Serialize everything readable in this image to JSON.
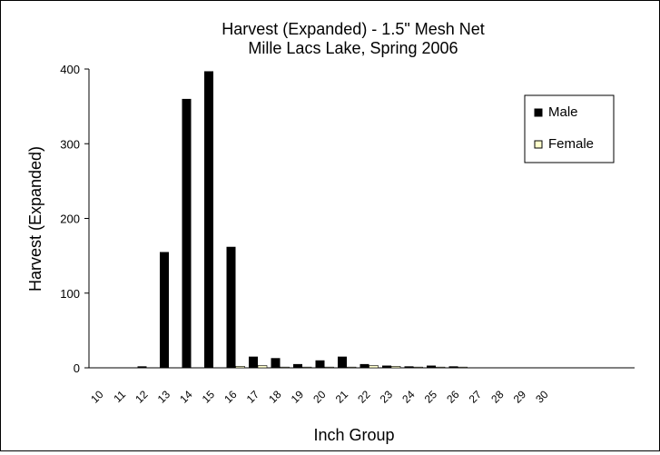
{
  "chart_data": {
    "type": "bar",
    "title": "Harvest (Expanded) - 1.5\" Mesh Net",
    "subtitle": "Mille Lacs Lake, Spring 2006",
    "xlabel": "Inch Group",
    "ylabel": "Harvest (Expanded)",
    "categories": [
      "10",
      "11",
      "12",
      "13",
      "14",
      "15",
      "16",
      "17",
      "18",
      "19",
      "20",
      "21",
      "22",
      "23",
      "24",
      "25",
      "26",
      "27",
      "28",
      "29",
      "30"
    ],
    "ylim": [
      0,
      400
    ],
    "yticks": [
      "0",
      "100",
      "200",
      "300",
      "400"
    ],
    "grid": false,
    "legend_position": "top-right",
    "series": [
      {
        "name": "Male",
        "color": "#000000",
        "values": [
          0,
          0,
          2,
          155,
          360,
          397,
          162,
          15,
          13,
          5,
          10,
          15,
          5,
          3,
          2,
          3,
          2,
          0,
          0,
          0,
          0
        ]
      },
      {
        "name": "Female",
        "color": "#ffffcc",
        "values": [
          0,
          0,
          0,
          0,
          0,
          0,
          2,
          3,
          1,
          1,
          1,
          1,
          3,
          2,
          1,
          1,
          1,
          0,
          0,
          0,
          0
        ]
      }
    ]
  }
}
